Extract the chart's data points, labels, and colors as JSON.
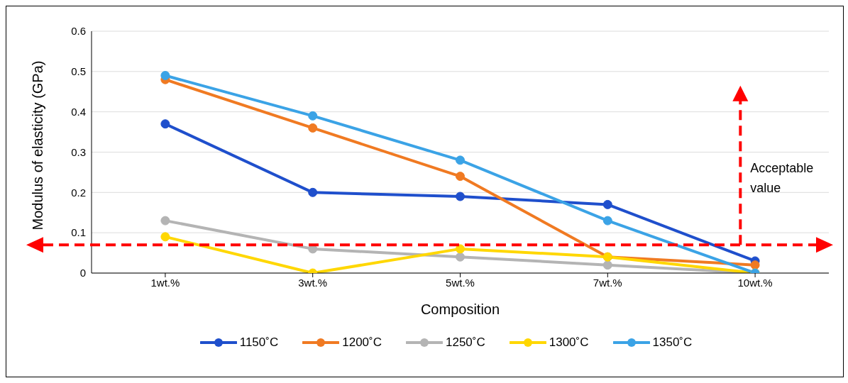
{
  "chart_data": {
    "type": "line",
    "xlabel": "Composition",
    "ylabel": "Modulus of elasticity (GPa)",
    "categories": [
      "1wt.%",
      "3wt.%",
      "5wt.%",
      "7wt.%",
      "10wt.%"
    ],
    "series": [
      {
        "name": "1150˚C",
        "color": "#1f4fcc",
        "values": [
          0.37,
          0.2,
          0.19,
          0.17,
          0.03
        ]
      },
      {
        "name": "1200˚C",
        "color": "#f07a22",
        "values": [
          0.48,
          0.36,
          0.24,
          0.04,
          0.02
        ]
      },
      {
        "name": "1250˚C",
        "color": "#b4b4b4",
        "values": [
          0.13,
          0.06,
          0.04,
          0.02,
          0
        ]
      },
      {
        "name": "1300˚C",
        "color": "#ffd700",
        "values": [
          0.09,
          0,
          0.06,
          0.04,
          0
        ]
      },
      {
        "name": "1350˚C",
        "color": "#3ba3e6",
        "values": [
          0.49,
          0.39,
          0.28,
          0.13,
          0
        ]
      }
    ],
    "ylim": [
      0,
      0.6
    ],
    "yticks": [
      0,
      0.1,
      0.2,
      0.3,
      0.4,
      0.5,
      0.6
    ],
    "grid": "y",
    "legend": "bottom",
    "marker": "circle",
    "line_style": "solid",
    "ref_lines": [
      {
        "axis": "y",
        "value": 0.07,
        "color": "#ff0000",
        "line_style": "dashed"
      }
    ],
    "annotations": [
      "Acceptable value"
    ]
  }
}
